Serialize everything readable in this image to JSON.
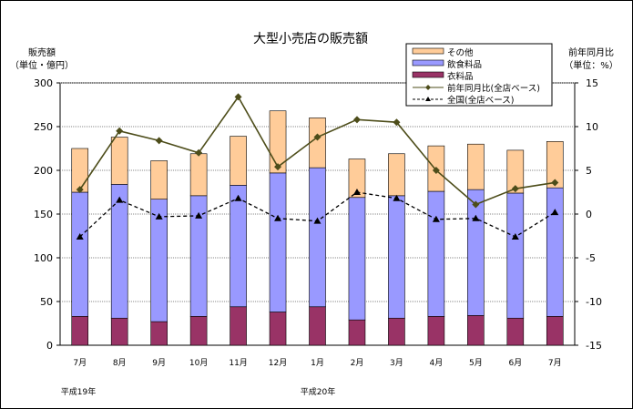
{
  "chart_data": {
    "type": "bar",
    "title": "大型小売店の販売額",
    "ylabel": "販売額",
    "ylabel_unit": "（単位・億円）",
    "y2label": "前年同月比",
    "y2label_unit": "（単位：%）",
    "ylim": [
      0,
      300
    ],
    "y2lim": [
      -15,
      15
    ],
    "yticks": [
      "0",
      "50",
      "100",
      "150",
      "200",
      "250",
      "300"
    ],
    "y2ticks": [
      "-15",
      "-10",
      "-5",
      "0",
      "5",
      "10",
      "15"
    ],
    "categories": [
      "7月",
      "8月",
      "9月",
      "10月",
      "11月",
      "12月",
      "1月",
      "2月",
      "3月",
      "4月",
      "5月",
      "6月",
      "7月"
    ],
    "era_labels": [
      "平成19年",
      "平成20年"
    ],
    "grid": true,
    "legend": "top-right",
    "series": [
      {
        "name": "衣料品",
        "kind": "bar",
        "color": "#993366",
        "values": [
          33,
          31,
          27,
          33,
          44,
          38,
          44,
          29,
          31,
          33,
          34,
          31,
          33
        ]
      },
      {
        "name": "飲食料品",
        "kind": "bar",
        "color": "#9999FF",
        "values": [
          142,
          153,
          140,
          138,
          139,
          159,
          159,
          140,
          140,
          143,
          144,
          143,
          147
        ]
      },
      {
        "name": "その他",
        "kind": "bar",
        "color": "#FFCC99",
        "values": [
          50,
          54,
          44,
          48,
          56,
          71,
          57,
          44,
          48,
          52,
          52,
          49,
          53
        ]
      },
      {
        "name": "前年同月比(全店ベース)",
        "kind": "line",
        "axis": "right",
        "color": "#4D4D1A",
        "marker": "diamond",
        "values": [
          2.8,
          9.5,
          8.4,
          7.0,
          13.4,
          5.4,
          8.8,
          10.8,
          10.5,
          5.0,
          1.1,
          2.9,
          3.6
        ]
      },
      {
        "name": "全国(全店ベース)",
        "kind": "line",
        "axis": "right",
        "color": "#000000",
        "marker": "triangle",
        "dashed": true,
        "values": [
          -2.6,
          1.6,
          -0.3,
          -0.2,
          1.8,
          -0.5,
          -0.8,
          2.5,
          1.8,
          -0.6,
          -0.5,
          -2.6,
          0.2
        ]
      }
    ]
  }
}
